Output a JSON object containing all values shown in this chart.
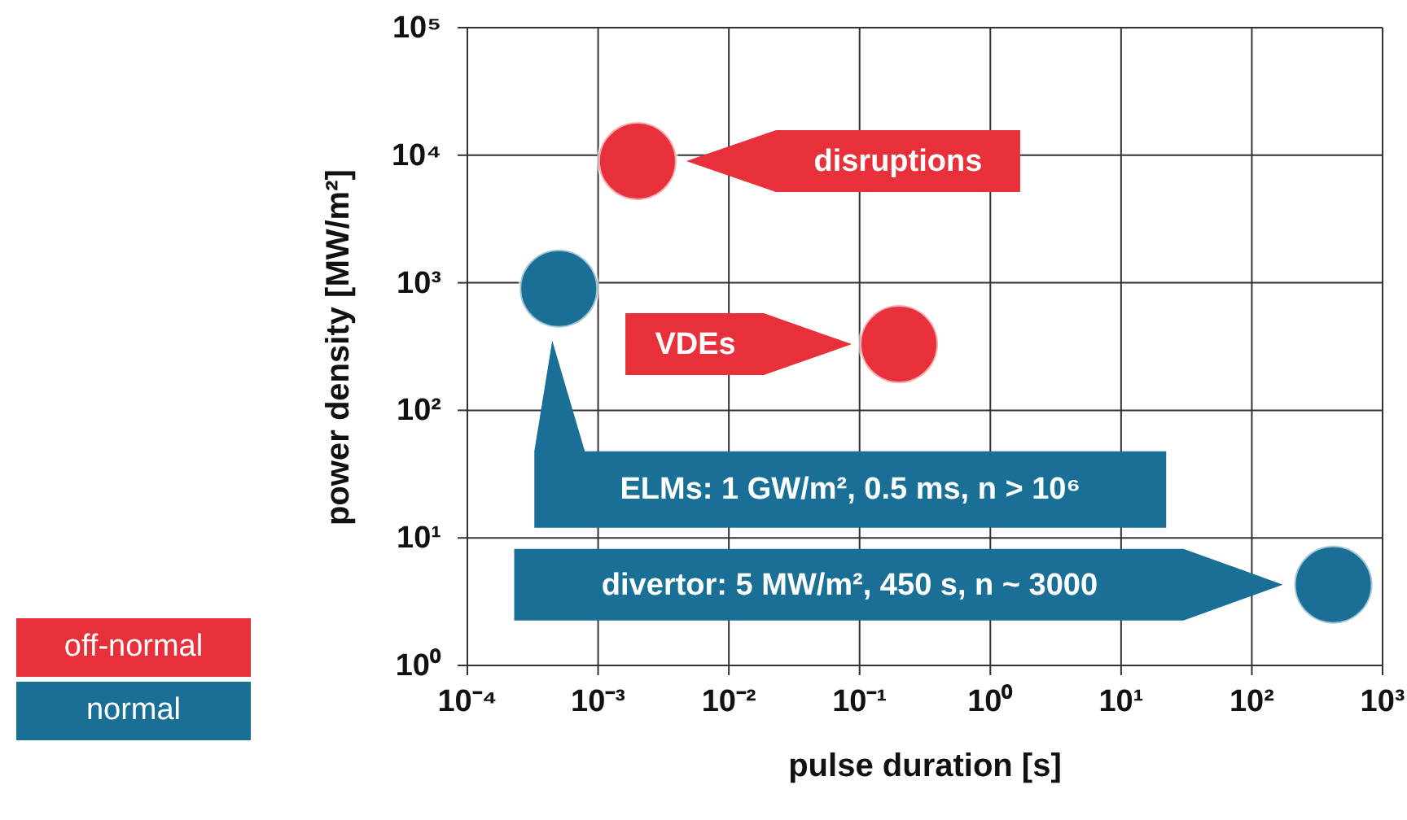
{
  "chart_data": {
    "type": "scatter",
    "xlabel": "pulse duration [s]",
    "ylabel": "power density [MW/m²]",
    "log": "xy",
    "grid": true,
    "legend": "bottom left",
    "marker": "circle",
    "xlim": [
      0.0001,
      1000
    ],
    "xticks": [
      {
        "value": 0.0001,
        "label": "10⁻⁴"
      },
      {
        "value": 0.001,
        "label": "10⁻³"
      },
      {
        "value": 0.01,
        "label": "10⁻²"
      },
      {
        "value": 0.1,
        "label": "10⁻¹"
      },
      {
        "value": 1,
        "label": "10⁰"
      },
      {
        "value": 10,
        "label": "10¹"
      },
      {
        "value": 100,
        "label": "10²"
      },
      {
        "value": 1000,
        "label": "10³"
      }
    ],
    "ylim": [
      1,
      100000
    ],
    "yticks": [
      {
        "value": 1,
        "label": "10⁰"
      },
      {
        "value": 10,
        "label": "10¹"
      },
      {
        "value": 100,
        "label": "10²"
      },
      {
        "value": 1000,
        "label": "10³"
      },
      {
        "value": 10000,
        "label": "10⁴"
      },
      {
        "value": 100000,
        "label": "10⁵"
      }
    ],
    "series": [
      {
        "name": "off-normal",
        "color": "#e8303a",
        "x": [
          0.002,
          0.2
        ],
        "values": [
          9000,
          330
        ]
      },
      {
        "name": "normal",
        "color": "#1a6f96",
        "x": [
          0.0005,
          420
        ],
        "values": [
          900,
          4.3
        ]
      }
    ],
    "annotations": [
      "disruptions",
      "VDEs",
      "ELMs: 1 GW/m², 0.5 ms, n > 10⁶",
      "divertor: 5 MW/m², 450 s, n ~ 3000"
    ]
  }
}
